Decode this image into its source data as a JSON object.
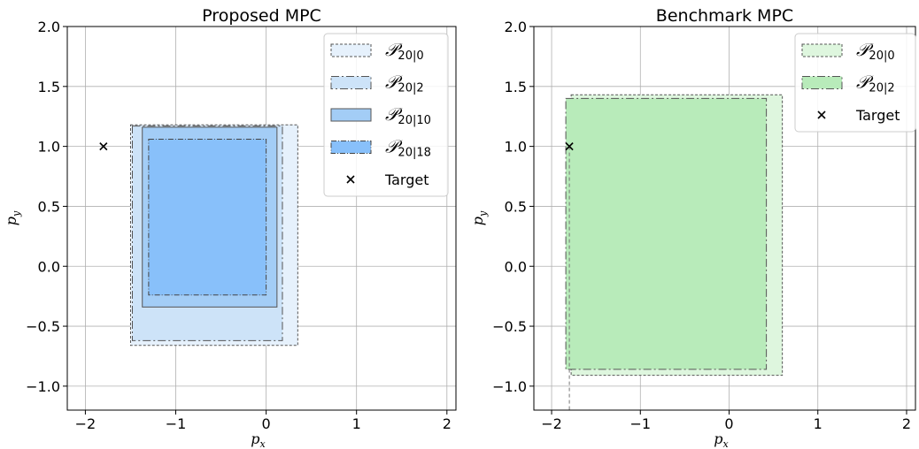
{
  "chart_data": [
    {
      "type": "area",
      "title": "Proposed MPC",
      "xlabel": "p_x",
      "ylabel": "p_y",
      "xlabel_main": "p",
      "xlabel_sub": "x",
      "ylabel_main": "p",
      "ylabel_sub": "y",
      "xlim": [
        -2.2,
        2.1
      ],
      "ylim": [
        -1.2,
        2.0
      ],
      "xticks": [
        -2,
        -1,
        0,
        1,
        2
      ],
      "xtick_labels": [
        "−2",
        "−1",
        "0",
        "1",
        "2"
      ],
      "yticks": [
        -1.0,
        -0.5,
        0.0,
        0.5,
        1.0,
        1.5,
        2.0
      ],
      "ytick_labels": [
        "−1.0",
        "−0.5",
        "0.0",
        "0.5",
        "1.0",
        "1.5",
        "2.0"
      ],
      "grid": true,
      "legend_position": "top-right",
      "target": {
        "name": "Target",
        "x": -1.8,
        "y": 1.0
      },
      "sets": [
        {
          "name": "P_20|0",
          "legend_main": "𝒫",
          "legend_sub": "20|0",
          "x": [
            -1.5,
            0.35
          ],
          "y": [
            -0.66,
            1.18
          ],
          "fill": "#e6f1fc",
          "edge": "#555555",
          "dash": "3,2"
        },
        {
          "name": "P_20|2",
          "legend_main": "𝒫",
          "legend_sub": "20|2",
          "x": [
            -1.48,
            0.18
          ],
          "y": [
            -0.62,
            1.17
          ],
          "fill": "#cde3f8",
          "edge": "#555555",
          "dash": "9,3,2,3"
        },
        {
          "name": "P_20|10",
          "legend_main": "𝒫",
          "legend_sub": "20|10",
          "x": [
            -1.37,
            0.12
          ],
          "y": [
            -0.34,
            1.16
          ],
          "fill": "#a3cdf6",
          "edge": "#555555",
          "dash": ""
        },
        {
          "name": "P_20|18",
          "legend_main": "𝒫",
          "legend_sub": "20|18",
          "x": [
            -1.3,
            0.0
          ],
          "y": [
            -0.24,
            1.06
          ],
          "fill": "#88c0fa",
          "edge": "#444444",
          "dash": "6,2,1,2"
        }
      ]
    },
    {
      "type": "area",
      "title": "Benchmark MPC",
      "xlabel": "p_x",
      "ylabel": "p_y",
      "xlabel_main": "p",
      "xlabel_sub": "x",
      "ylabel_main": "p",
      "ylabel_sub": "y",
      "xlim": [
        -2.2,
        2.1
      ],
      "ylim": [
        -1.2,
        2.0
      ],
      "xticks": [
        -2,
        -1,
        0,
        1,
        2
      ],
      "xtick_labels": [
        "−2",
        "−1",
        "0",
        "1",
        "2"
      ],
      "yticks": [
        -1.0,
        -0.5,
        0.0,
        0.5,
        1.0,
        1.5,
        2.0
      ],
      "ytick_labels": [
        "−1.0",
        "−0.5",
        "0.0",
        "0.5",
        "1.0",
        "1.5",
        "2.0"
      ],
      "grid": true,
      "legend_position": "top-right",
      "target": {
        "name": "Target",
        "x": -1.8,
        "y": 1.0
      },
      "sets": [
        {
          "name": "P_20|0",
          "legend_main": "𝒫",
          "legend_sub": "20|0",
          "x": [
            -1.78,
            0.6
          ],
          "y": [
            -0.91,
            1.43
          ],
          "fill": "#def6de",
          "edge": "#555555",
          "dash": "3,2"
        },
        {
          "name": "P_20|2",
          "legend_main": "𝒫",
          "legend_sub": "20|2",
          "x": [
            -1.84,
            0.42
          ],
          "y": [
            -0.86,
            1.4
          ],
          "fill": "#b8ebba",
          "edge": "#555555",
          "dash": "9,3,2,3"
        }
      ]
    }
  ]
}
